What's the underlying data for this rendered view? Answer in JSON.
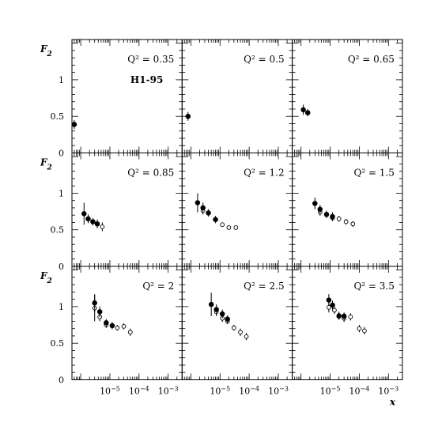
{
  "chart_data": {
    "type": "scatter",
    "xlabel": "x",
    "ylabel": "F2",
    "x_scale": "log",
    "xlim": [
      5e-07,
      0.003
    ],
    "ylim": [
      0,
      1.55
    ],
    "x_tick_labels": [
      "10^-5",
      "10^-4",
      "10^-3"
    ],
    "y_tick_labels": [
      "0",
      "0.5",
      "1"
    ],
    "series": [
      {
        "name": "H1-95",
        "marker": "filled-circle"
      },
      {
        "name": "",
        "marker": "open-circle"
      }
    ],
    "panels": [
      {
        "q2_label": "Q² = 0.35",
        "dataset_label": "H1-95",
        "filled": [
          {
            "x": 6e-07,
            "y": 0.39,
            "err": 0.06
          }
        ],
        "open": []
      },
      {
        "q2_label": "Q² = 0.5",
        "filled": [
          {
            "x": 8e-07,
            "y": 0.5,
            "err": 0.06
          }
        ],
        "open": []
      },
      {
        "q2_label": "Q² = 0.65",
        "filled": [
          {
            "x": 1.2e-06,
            "y": 0.59,
            "err": 0.07
          },
          {
            "x": 1.7e-06,
            "y": 0.55,
            "err": 0.05
          }
        ],
        "open": []
      },
      {
        "q2_label": "Q² = 0.85",
        "filled": [
          {
            "x": 1.3e-06,
            "y": 0.72,
            "err": 0.15
          },
          {
            "x": 1.8e-06,
            "y": 0.65,
            "err": 0.06
          },
          {
            "x": 2.6e-06,
            "y": 0.61,
            "err": 0.05
          },
          {
            "x": 3.7e-06,
            "y": 0.58,
            "err": 0.06
          }
        ],
        "open": [
          {
            "x": 5.5e-06,
            "y": 0.54,
            "err": 0.06
          }
        ]
      },
      {
        "q2_label": "Q² = 1.2",
        "filled": [
          {
            "x": 1.7e-06,
            "y": 0.87,
            "err": 0.13
          },
          {
            "x": 2.6e-06,
            "y": 0.8,
            "err": 0.07
          },
          {
            "x": 4e-06,
            "y": 0.73,
            "err": 0.05
          },
          {
            "x": 7e-06,
            "y": 0.64,
            "err": 0.05
          }
        ],
        "open": [
          {
            "x": 2.6e-06,
            "y": 0.76,
            "err": 0.05
          },
          {
            "x": 1.2e-05,
            "y": 0.57,
            "err": 0.03
          },
          {
            "x": 2e-05,
            "y": 0.53,
            "err": 0.03
          },
          {
            "x": 3.5e-05,
            "y": 0.53,
            "err": 0.03
          }
        ]
      },
      {
        "q2_label": "Q² = 1.5",
        "filled": [
          {
            "x": 3e-06,
            "y": 0.86,
            "err": 0.08
          },
          {
            "x": 4.5e-06,
            "y": 0.78,
            "err": 0.06
          },
          {
            "x": 7.5e-06,
            "y": 0.71,
            "err": 0.05
          },
          {
            "x": 1.2e-05,
            "y": 0.68,
            "err": 0.06
          }
        ],
        "open": [
          {
            "x": 4.5e-06,
            "y": 0.74,
            "err": 0.05
          },
          {
            "x": 1.2e-05,
            "y": 0.66,
            "err": 0.04
          },
          {
            "x": 2e-05,
            "y": 0.65,
            "err": 0.04
          },
          {
            "x": 3.5e-05,
            "y": 0.61,
            "err": 0.04
          },
          {
            "x": 6e-05,
            "y": 0.58,
            "err": 0.04
          }
        ]
      },
      {
        "q2_label": "Q² = 2",
        "filled": [
          {
            "x": 3e-06,
            "y": 1.05,
            "err": 0.12
          },
          {
            "x": 4.5e-06,
            "y": 0.93,
            "err": 0.07
          },
          {
            "x": 7.5e-06,
            "y": 0.78,
            "err": 0.05
          },
          {
            "x": 1.2e-05,
            "y": 0.74,
            "err": 0.05
          }
        ],
        "open": [
          {
            "x": 3e-06,
            "y": 0.98,
            "err": 0.18
          },
          {
            "x": 4.5e-06,
            "y": 0.86,
            "err": 0.06
          },
          {
            "x": 7.5e-06,
            "y": 0.75,
            "err": 0.04
          },
          {
            "x": 1.8e-05,
            "y": 0.71,
            "err": 0.04
          },
          {
            "x": 3e-05,
            "y": 0.73,
            "err": 0.04
          },
          {
            "x": 5e-05,
            "y": 0.65,
            "err": 0.05
          }
        ]
      },
      {
        "q2_label": "Q² = 2.5",
        "filled": [
          {
            "x": 5e-06,
            "y": 1.03,
            "err": 0.16
          },
          {
            "x": 7.5e-06,
            "y": 0.96,
            "err": 0.07
          },
          {
            "x": 1.2e-05,
            "y": 0.9,
            "err": 0.06
          },
          {
            "x": 1.8e-05,
            "y": 0.83,
            "err": 0.05
          }
        ],
        "open": [
          {
            "x": 7.5e-06,
            "y": 0.93,
            "err": 0.06
          },
          {
            "x": 1.2e-05,
            "y": 0.84,
            "err": 0.05
          },
          {
            "x": 1.8e-05,
            "y": 0.8,
            "err": 0.04
          },
          {
            "x": 3e-05,
            "y": 0.71,
            "err": 0.04
          },
          {
            "x": 5e-05,
            "y": 0.65,
            "err": 0.05
          },
          {
            "x": 8e-05,
            "y": 0.59,
            "err": 0.05
          }
        ]
      },
      {
        "q2_label": "Q² = 3.5",
        "filled": [
          {
            "x": 9e-06,
            "y": 1.09,
            "err": 0.08
          },
          {
            "x": 1.2e-05,
            "y": 1.02,
            "err": 0.06
          },
          {
            "x": 2e-05,
            "y": 0.87,
            "err": 0.05
          },
          {
            "x": 3e-05,
            "y": 0.87,
            "err": 0.05
          }
        ],
        "open": [
          {
            "x": 9e-06,
            "y": 0.99,
            "err": 0.07
          },
          {
            "x": 1.4e-05,
            "y": 0.95,
            "err": 0.05
          },
          {
            "x": 2e-05,
            "y": 0.88,
            "err": 0.05
          },
          {
            "x": 3e-05,
            "y": 0.84,
            "err": 0.05
          },
          {
            "x": 5e-05,
            "y": 0.86,
            "err": 0.05
          },
          {
            "x": 0.0001,
            "y": 0.7,
            "err": 0.05
          },
          {
            "x": 0.00015,
            "y": 0.67,
            "err": 0.05
          }
        ]
      }
    ]
  }
}
